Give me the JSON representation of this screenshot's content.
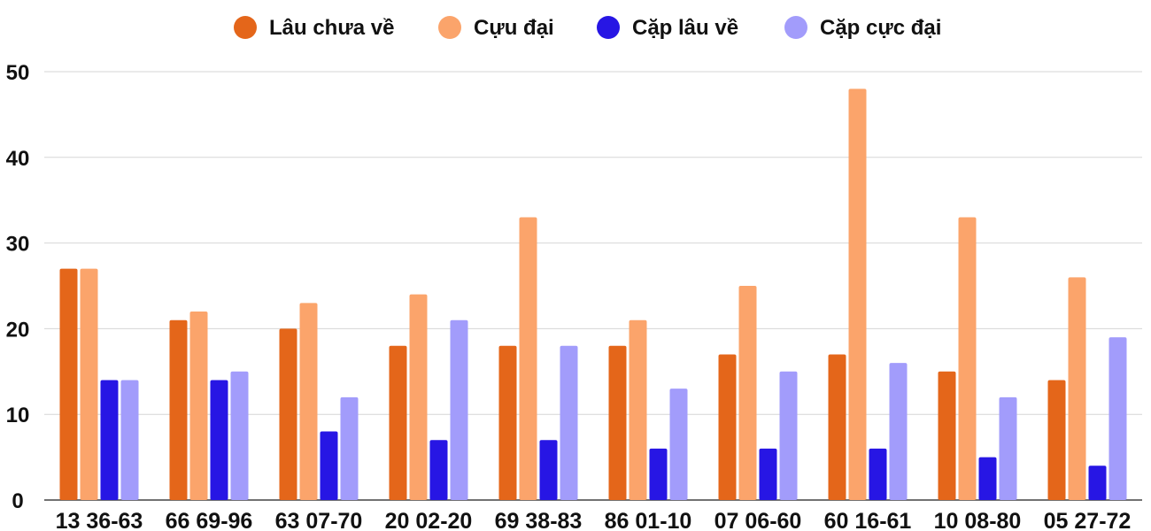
{
  "chart_data": {
    "type": "bar",
    "title": "",
    "xlabel": "",
    "ylabel": "",
    "ylim": [
      0,
      50
    ],
    "yticks": [
      0,
      10,
      20,
      30,
      40,
      50
    ],
    "grid": true,
    "legend_position": "top",
    "categories": [
      "13 36-63",
      "66 69-96",
      "63 07-70",
      "20 02-20",
      "69 38-83",
      "86 01-10",
      "07 06-60",
      "60 16-61",
      "10 08-80",
      "05 27-72"
    ],
    "series": [
      {
        "name": "Lâu chưa về",
        "color": "#e4661a",
        "values": [
          27,
          21,
          20,
          18,
          18,
          18,
          17,
          17,
          15,
          14
        ]
      },
      {
        "name": "Cựu đại",
        "color": "#fba46b",
        "values": [
          27,
          22,
          23,
          24,
          33,
          21,
          25,
          48,
          33,
          26
        ]
      },
      {
        "name": "Cặp lâu về",
        "color": "#2716e4",
        "values": [
          14,
          14,
          8,
          7,
          7,
          6,
          6,
          6,
          5,
          4
        ]
      },
      {
        "name": "Cặp cực đại",
        "color": "#a29cfb",
        "values": [
          14,
          15,
          12,
          21,
          18,
          13,
          15,
          16,
          12,
          19
        ]
      }
    ]
  }
}
